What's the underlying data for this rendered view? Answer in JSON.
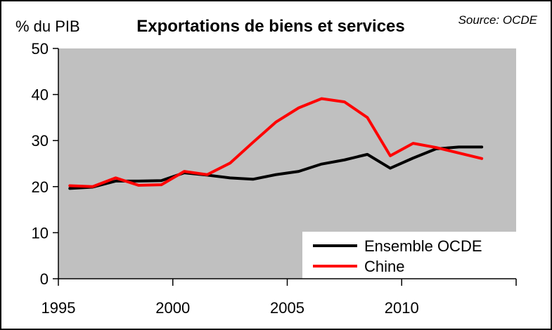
{
  "chart_data": {
    "type": "line",
    "title": "Exportations de biens et services",
    "ylabel": "% du PIB",
    "source": "Source: OCDE",
    "xlim": [
      1995,
      2015
    ],
    "ylim": [
      0,
      50
    ],
    "y_ticks": [
      0,
      10,
      20,
      30,
      40,
      50
    ],
    "x_tick_labels": [
      {
        "value": 1995,
        "label": "1995"
      },
      {
        "value": 2000,
        "label": "2000"
      },
      {
        "value": 2005,
        "label": "2005"
      },
      {
        "value": 2010,
        "label": "2010"
      }
    ],
    "grid": false,
    "plot_background": "#c0c0c0",
    "legend_position": "bottom-right",
    "x": [
      1995,
      1996,
      1997,
      1998,
      1999,
      2000,
      2001,
      2002,
      2003,
      2004,
      2005,
      2006,
      2007,
      2008,
      2009,
      2010,
      2011,
      2012,
      2013
    ],
    "series": [
      {
        "name": "Ensemble OCDE",
        "color": "#000000",
        "values": [
          19.6,
          19.9,
          21.2,
          21.2,
          21.3,
          23.0,
          22.5,
          21.9,
          21.6,
          22.6,
          23.3,
          24.9,
          25.8,
          27.0,
          24.0,
          26.2,
          28.2,
          28.6,
          28.6
        ]
      },
      {
        "name": "Chine",
        "color": "#ff0000",
        "values": [
          20.2,
          20.0,
          21.9,
          20.3,
          20.4,
          23.3,
          22.6,
          25.1,
          29.6,
          34.0,
          37.1,
          39.1,
          38.4,
          35.0,
          26.7,
          29.4,
          28.5,
          27.3,
          26.1
        ]
      }
    ]
  }
}
